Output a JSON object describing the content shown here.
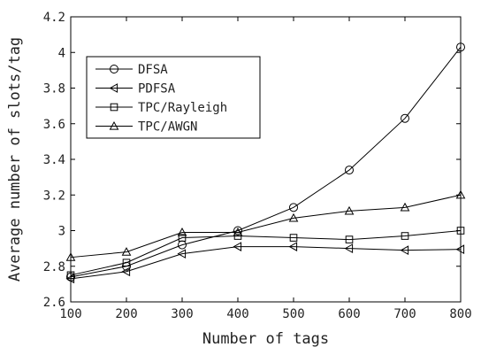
{
  "chart_data": {
    "type": "line",
    "title": "",
    "xlabel": "Number of tags",
    "ylabel": "Average number of slots/tag",
    "xlim": [
      100,
      800
    ],
    "ylim": [
      2.6,
      4.2
    ],
    "x": [
      100,
      200,
      300,
      400,
      500,
      600,
      700,
      800
    ],
    "xticks": [
      "100",
      "200",
      "300",
      "400",
      "500",
      "600",
      "700",
      "800"
    ],
    "yticks": [
      "2.6",
      "2.8",
      "3",
      "3.2",
      "3.4",
      "3.6",
      "3.8",
      "4",
      "4.2"
    ],
    "grid": false,
    "legend_position": "upper-left",
    "series": [
      {
        "name": "DFSA",
        "marker": "circle",
        "values": [
          2.74,
          2.8,
          2.92,
          3.0,
          3.13,
          3.34,
          3.63,
          4.03
        ]
      },
      {
        "name": "PDFSA",
        "marker": "triangle-left",
        "values": [
          2.73,
          2.77,
          2.87,
          2.91,
          2.91,
          2.9,
          2.89,
          2.895
        ]
      },
      {
        "name": "TPC/Rayleigh",
        "marker": "square",
        "values": [
          2.75,
          2.82,
          2.96,
          2.97,
          2.96,
          2.95,
          2.97,
          3.0
        ]
      },
      {
        "name": "TPC/AWGN",
        "marker": "triangle-up",
        "values": [
          2.85,
          2.88,
          2.99,
          2.99,
          3.07,
          3.11,
          3.13,
          3.2
        ]
      }
    ]
  }
}
